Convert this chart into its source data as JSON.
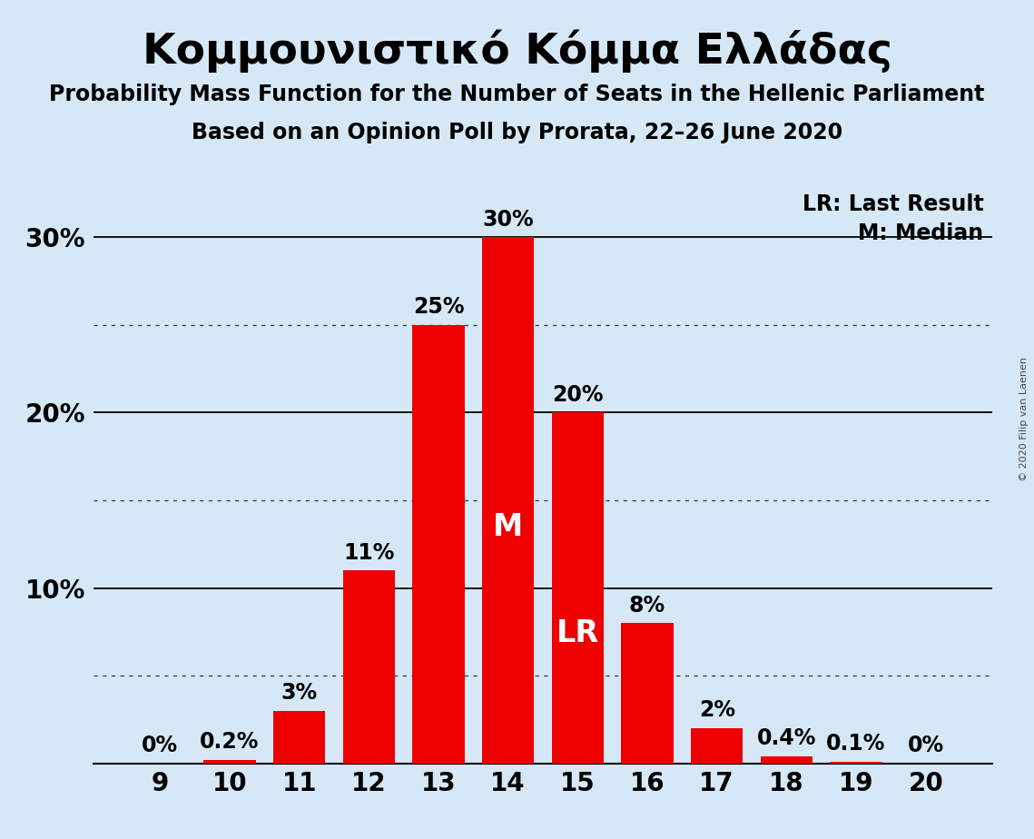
{
  "title": "Κομμουνιστικό Κόμμα Ελλάδας",
  "subtitle1": "Probability Mass Function for the Number of Seats in the Hellenic Parliament",
  "subtitle2": "Based on an Opinion Poll by Prorata, 22–26 June 2020",
  "copyright": "© 2020 Filip van Laenen",
  "seats": [
    9,
    10,
    11,
    12,
    13,
    14,
    15,
    16,
    17,
    18,
    19,
    20
  ],
  "probabilities": [
    0.0,
    0.2,
    3.0,
    11.0,
    25.0,
    30.0,
    20.0,
    8.0,
    2.0,
    0.4,
    0.1,
    0.0
  ],
  "bar_color": "#ee0000",
  "background_color": "#d6e8f5",
  "text_color": "#000000",
  "median_seat": 14,
  "last_result_seat": 15,
  "ylim_max": 33,
  "ytick_positions": [
    10,
    20,
    30
  ],
  "ytick_labels": [
    "10%",
    "20%",
    "30%"
  ],
  "solid_gridlines": [
    10.0,
    20.0,
    30.0
  ],
  "dotted_gridlines": [
    5.0,
    15.0,
    25.0
  ],
  "legend_lr": "LR: Last Result",
  "legend_m": "M: Median",
  "bar_width": 0.75,
  "title_fontsize": 34,
  "subtitle_fontsize": 17,
  "tick_fontsize": 20,
  "label_fontsize": 17,
  "marker_fontsize": 24
}
